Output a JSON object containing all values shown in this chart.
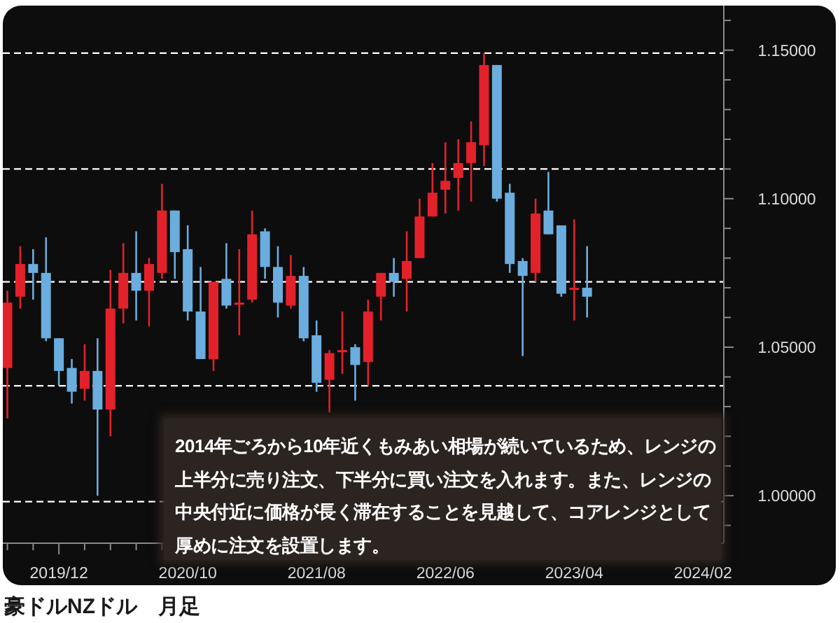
{
  "chart_data": {
    "type": "candlestick",
    "title": "豪ドルNZドル　月足",
    "annotations": [
      "2014年ごろから10年近くもみあい相場が続いているため、レンジの上半分に売り注文、下半分に買い注文を入れます。また、レンジの中央付近に価格が長く滞在することを見越して、コアレンジとして厚めに注文を設置します。"
    ],
    "x": [
      "2019-08",
      "2019-09",
      "2019-10",
      "2019-11",
      "2019-12",
      "2020-01",
      "2020-02",
      "2020-03",
      "2020-04",
      "2020-05",
      "2020-06",
      "2020-07",
      "2020-08",
      "2020-09",
      "2020-10",
      "2020-11",
      "2020-12",
      "2021-01",
      "2021-02",
      "2021-03",
      "2021-04",
      "2021-05",
      "2021-06",
      "2021-07",
      "2021-08",
      "2021-09",
      "2021-10",
      "2021-11",
      "2021-12",
      "2022-01",
      "2022-02",
      "2022-03",
      "2022-04",
      "2022-05",
      "2022-06",
      "2022-07",
      "2022-08",
      "2022-09",
      "2022-10",
      "2022-11",
      "2022-12",
      "2023-01",
      "2023-02",
      "2023-03",
      "2023-04",
      "2023-05"
    ],
    "ohlc": [
      [
        1.043,
        1.069,
        1.026,
        1.065
      ],
      [
        1.067,
        1.084,
        1.063,
        1.078
      ],
      [
        1.078,
        1.083,
        1.066,
        1.075
      ],
      [
        1.075,
        1.087,
        1.052,
        1.053
      ],
      [
        1.053,
        1.053,
        1.037,
        1.042
      ],
      [
        1.043,
        1.046,
        1.031,
        1.035
      ],
      [
        1.036,
        1.051,
        1.032,
        1.042
      ],
      [
        1.042,
        1.053,
        1.0,
        1.029
      ],
      [
        1.029,
        1.076,
        1.02,
        1.063
      ],
      [
        1.063,
        1.085,
        1.058,
        1.075
      ],
      [
        1.075,
        1.089,
        1.059,
        1.069
      ],
      [
        1.069,
        1.08,
        1.057,
        1.078
      ],
      [
        1.075,
        1.105,
        1.073,
        1.096
      ],
      [
        1.096,
        1.096,
        1.073,
        1.082
      ],
      [
        1.083,
        1.091,
        1.059,
        1.062
      ],
      [
        1.062,
        1.077,
        1.046,
        1.046
      ],
      [
        1.046,
        1.072,
        1.042,
        1.072
      ],
      [
        1.073,
        1.085,
        1.063,
        1.064
      ],
      [
        1.065,
        1.083,
        1.054,
        1.065
      ],
      [
        1.066,
        1.096,
        1.065,
        1.088
      ],
      [
        1.089,
        1.09,
        1.073,
        1.077
      ],
      [
        1.077,
        1.084,
        1.06,
        1.065
      ],
      [
        1.064,
        1.081,
        1.063,
        1.074
      ],
      [
        1.074,
        1.077,
        1.052,
        1.053
      ],
      [
        1.054,
        1.059,
        1.035,
        1.038
      ],
      [
        1.039,
        1.049,
        1.028,
        1.048
      ],
      [
        1.049,
        1.062,
        1.041,
        1.049
      ],
      [
        1.05,
        1.051,
        1.032,
        1.044
      ],
      [
        1.045,
        1.066,
        1.037,
        1.062
      ],
      [
        1.067,
        1.075,
        1.059,
        1.075
      ],
      [
        1.075,
        1.08,
        1.067,
        1.072
      ],
      [
        1.073,
        1.089,
        1.062,
        1.079
      ],
      [
        1.08,
        1.1,
        1.08,
        1.094
      ],
      [
        1.094,
        1.112,
        1.094,
        1.102
      ],
      [
        1.103,
        1.119,
        1.095,
        1.106
      ],
      [
        1.107,
        1.12,
        1.096,
        1.112
      ],
      [
        1.112,
        1.126,
        1.099,
        1.119
      ],
      [
        1.118,
        1.149,
        1.111,
        1.145
      ],
      [
        1.145,
        1.145,
        1.099,
        1.1
      ],
      [
        1.102,
        1.105,
        1.075,
        1.078
      ],
      [
        1.079,
        1.08,
        1.047,
        1.074
      ],
      [
        1.075,
        1.1,
        1.072,
        1.095
      ],
      [
        1.096,
        1.109,
        1.088,
        1.088
      ],
      [
        1.091,
        1.091,
        1.067,
        1.068
      ],
      [
        1.07,
        1.093,
        1.059,
        1.07
      ],
      [
        1.07,
        1.084,
        1.06,
        1.067
      ]
    ],
    "colors": [
      "#e3212b",
      "#e3212b",
      "#6badde",
      "#6badde",
      "#6badde",
      "#6badde",
      "#e3212b",
      "#6badde",
      "#e3212b",
      "#e3212b",
      "#6badde",
      "#e3212b",
      "#e3212b",
      "#6badde",
      "#6badde",
      "#6badde",
      "#e3212b",
      "#6badde",
      "#e3212b",
      "#e3212b",
      "#6badde",
      "#6badde",
      "#e3212b",
      "#6badde",
      "#6badde",
      "#e3212b",
      "#e3212b",
      "#6badde",
      "#e3212b",
      "#e3212b",
      "#6badde",
      "#e3212b",
      "#e3212b",
      "#e3212b",
      "#e3212b",
      "#e3212b",
      "#e3212b",
      "#e3212b",
      "#6badde",
      "#6badde",
      "#6badde",
      "#e3212b",
      "#6badde",
      "#6badde",
      "#e3212b",
      "#6badde"
    ],
    "xlim": [
      "2019-07-21",
      "2024-03-20"
    ],
    "xticks": [
      {
        "value": "2019-08",
        "label": null
      },
      {
        "value": "2019-10",
        "label": null
      },
      {
        "value": "2019-12",
        "label": "2019/12"
      },
      {
        "value": "2020-02",
        "label": null
      },
      {
        "value": "2020-04",
        "label": null
      },
      {
        "value": "2020-06",
        "label": null
      },
      {
        "value": "2020-08",
        "label": null
      },
      {
        "value": "2020-10",
        "label": "2020/10"
      },
      {
        "value": "2020-12",
        "label": null
      },
      {
        "value": "2021-02",
        "label": null
      },
      {
        "value": "2021-04",
        "label": null
      },
      {
        "value": "2021-06",
        "label": null
      },
      {
        "value": "2021-08",
        "label": "2021/08"
      },
      {
        "value": "2021-10",
        "label": null
      },
      {
        "value": "2021-12",
        "label": null
      },
      {
        "value": "2022-02",
        "label": null
      },
      {
        "value": "2022-04",
        "label": null
      },
      {
        "value": "2022-06",
        "label": "2022/06"
      },
      {
        "value": "2022-08",
        "label": null
      },
      {
        "value": "2022-10",
        "label": null
      },
      {
        "value": "2022-12",
        "label": null
      },
      {
        "value": "2023-02",
        "label": null
      },
      {
        "value": "2023-04",
        "label": "2023/04"
      },
      {
        "value": "2023-06",
        "label": null
      },
      {
        "value": "2023-08",
        "label": null
      },
      {
        "value": "2023-10",
        "label": null
      },
      {
        "value": "2023-12",
        "label": null
      },
      {
        "value": "2024-02",
        "label": "2024/02"
      }
    ],
    "ylim": [
      0.984,
      1.165
    ],
    "yticks": [
      {
        "value": 0.99,
        "label": null
      },
      {
        "value": 1.0,
        "label": "1.00000"
      },
      {
        "value": 1.01,
        "label": null
      },
      {
        "value": 1.02,
        "label": null
      },
      {
        "value": 1.03,
        "label": null
      },
      {
        "value": 1.04,
        "label": null
      },
      {
        "value": 1.05,
        "label": "1.05000"
      },
      {
        "value": 1.06,
        "label": null
      },
      {
        "value": 1.07,
        "label": null
      },
      {
        "value": 1.08,
        "label": null
      },
      {
        "value": 1.09,
        "label": null
      },
      {
        "value": 1.1,
        "label": "1.10000"
      },
      {
        "value": 1.11,
        "label": null
      },
      {
        "value": 1.12,
        "label": null
      },
      {
        "value": 1.13,
        "label": null
      },
      {
        "value": 1.14,
        "label": null
      },
      {
        "value": 1.15,
        "label": "1.15000"
      },
      {
        "value": 1.16,
        "label": null
      }
    ],
    "ref_lines": [
      {
        "axis": "y",
        "value": 0.998,
        "color": "#ffffff",
        "line_style": "dashed"
      },
      {
        "axis": "y",
        "value": 1.037,
        "color": "#ffffff",
        "line_style": "dashed"
      },
      {
        "axis": "y",
        "value": 1.072,
        "color": "#ffffff",
        "line_style": "dashed"
      },
      {
        "axis": "y",
        "value": 1.11,
        "color": "#ffffff",
        "line_style": "dashed"
      },
      {
        "axis": "y",
        "value": 1.149,
        "color": "#ffffff",
        "line_style": "dashed"
      }
    ]
  }
}
